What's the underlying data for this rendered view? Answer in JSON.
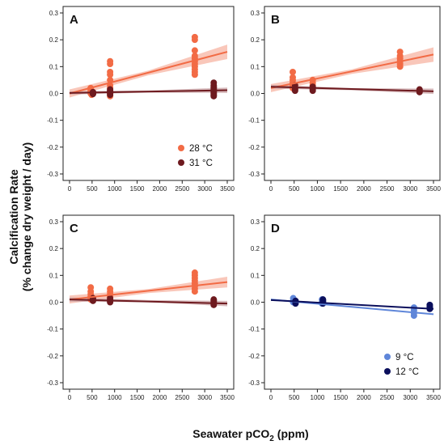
{
  "figure": {
    "ylabel_line1": "Calcification Rate",
    "ylabel_line2": "(% change dry weight / day)",
    "xlabel_main": "Seawater pCO",
    "xlabel_sub": "2",
    "xlabel_unit": "(ppm)"
  },
  "colors": {
    "orange": "#f26b45",
    "orange_band": "#f7b4a3",
    "darkred": "#6e1a1f",
    "darkred_band": "#c9a3a6",
    "lightblue": "#5f86d9",
    "navy": "#0b0f5c"
  },
  "chart_data": [
    {
      "type": "scatter",
      "panel": "A",
      "xlim": [
        0,
        3500
      ],
      "ylim": [
        -0.3,
        0.3
      ],
      "x_ticks": [
        0,
        500,
        1000,
        1500,
        2000,
        2500,
        3000,
        3500
      ],
      "y_ticks": [
        -0.3,
        -0.2,
        -0.1,
        0.0,
        0.1,
        0.2,
        0.3
      ],
      "x_tick_labels": [
        "0",
        "500",
        "1000",
        "1500",
        "2000",
        "2500",
        "3000",
        "3500"
      ],
      "y_tick_labels": [
        "-0.3",
        "-0.2",
        "-0.1",
        "0.0",
        "0.1",
        "0.2",
        "0.3"
      ],
      "legend": {
        "position": "bottom-right",
        "entries": [
          "28 °C",
          "31 °C"
        ]
      },
      "series": [
        {
          "name": "28 °C",
          "color": "orange",
          "band_color": "orange_band",
          "points": [
            [
              470,
              0.02
            ],
            [
              470,
              0.015
            ],
            [
              470,
              0.01
            ],
            [
              470,
              0.005
            ],
            [
              470,
              0.0
            ],
            [
              490,
              -0.005
            ],
            [
              480,
              0.01
            ],
            [
              900,
              0.12
            ],
            [
              900,
              0.11
            ],
            [
              900,
              0.08
            ],
            [
              900,
              0.07
            ],
            [
              900,
              0.05
            ],
            [
              900,
              0.03
            ],
            [
              900,
              0.02
            ],
            [
              900,
              0.0
            ],
            [
              900,
              -0.01
            ],
            [
              2780,
              0.21
            ],
            [
              2780,
              0.2
            ],
            [
              2780,
              0.16
            ],
            [
              2780,
              0.14
            ],
            [
              2780,
              0.13
            ],
            [
              2780,
              0.12
            ],
            [
              2780,
              0.11
            ],
            [
              2780,
              0.1
            ],
            [
              2780,
              0.09
            ],
            [
              2780,
              0.08
            ],
            [
              2780,
              0.07
            ]
          ],
          "fit": {
            "x": [
              0,
              3500
            ],
            "y": [
              0.0,
              0.155
            ]
          },
          "band": {
            "x": [
              0,
              1750,
              3500
            ],
            "lower": [
              -0.015,
              0.068,
              0.128
            ],
            "upper": [
              0.015,
              0.085,
              0.182
            ]
          }
        },
        {
          "name": "31 °C",
          "color": "darkred",
          "band_color": "darkred_band",
          "points": [
            [
              520,
              0.005
            ],
            [
              520,
              0.0
            ],
            [
              520,
              -0.002
            ],
            [
              520,
              0.003
            ],
            [
              900,
              0.015
            ],
            [
              900,
              0.01
            ],
            [
              900,
              0.005
            ],
            [
              900,
              0.0
            ],
            [
              900,
              -0.005
            ],
            [
              3200,
              0.04
            ],
            [
              3200,
              0.03
            ],
            [
              3200,
              0.025
            ],
            [
              3200,
              0.02
            ],
            [
              3200,
              0.015
            ],
            [
              3200,
              0.01
            ],
            [
              3200,
              0.005
            ],
            [
              3200,
              0.0
            ],
            [
              3200,
              -0.005
            ],
            [
              3200,
              -0.01
            ]
          ],
          "fit": {
            "x": [
              0,
              3500
            ],
            "y": [
              0.002,
              0.012
            ]
          },
          "band": {
            "x": [
              0,
              1750,
              3500
            ],
            "lower": [
              -0.004,
              0.003,
              0.002
            ],
            "upper": [
              0.008,
              0.011,
              0.022
            ]
          }
        }
      ]
    },
    {
      "type": "scatter",
      "panel": "B",
      "xlim": [
        0,
        3500
      ],
      "ylim": [
        -0.3,
        0.3
      ],
      "x_ticks": [
        0,
        500,
        1000,
        1500,
        2000,
        2500,
        3000,
        3500
      ],
      "y_ticks": [
        -0.3,
        -0.2,
        -0.1,
        0.0,
        0.1,
        0.2,
        0.3
      ],
      "x_tick_labels": [
        "0",
        "500",
        "1000",
        "1500",
        "2000",
        "2500",
        "3000",
        "3500"
      ],
      "y_tick_labels": [
        "-0.3",
        "-0.2",
        "-0.1",
        "0.0",
        "0.1",
        "0.2",
        "0.3"
      ],
      "series": [
        {
          "name": "28 °C",
          "color": "orange",
          "band_color": "orange_band",
          "points": [
            [
              470,
              0.08
            ],
            [
              470,
              0.06
            ],
            [
              470,
              0.05
            ],
            [
              470,
              0.04
            ],
            [
              470,
              0.03
            ],
            [
              470,
              0.02
            ],
            [
              900,
              0.05
            ],
            [
              900,
              0.04
            ],
            [
              900,
              0.03
            ],
            [
              900,
              0.02
            ],
            [
              2780,
              0.155
            ],
            [
              2780,
              0.14
            ],
            [
              2780,
              0.13
            ],
            [
              2780,
              0.12
            ],
            [
              2780,
              0.11
            ],
            [
              2780,
              0.1
            ]
          ],
          "fit": {
            "x": [
              0,
              3500
            ],
            "y": [
              0.02,
              0.145
            ]
          },
          "band": {
            "x": [
              0,
              1750,
              3500
            ],
            "lower": [
              0.005,
              0.073,
              0.118
            ],
            "upper": [
              0.035,
              0.09,
              0.172
            ]
          }
        },
        {
          "name": "31 °C",
          "color": "darkred",
          "band_color": "darkred_band",
          "points": [
            [
              520,
              0.03
            ],
            [
              520,
              0.02
            ],
            [
              520,
              0.015
            ],
            [
              520,
              0.01
            ],
            [
              900,
              0.025
            ],
            [
              900,
              0.02
            ],
            [
              900,
              0.015
            ],
            [
              900,
              0.01
            ],
            [
              3200,
              0.015
            ],
            [
              3200,
              0.01
            ],
            [
              3200,
              0.005
            ]
          ],
          "fit": {
            "x": [
              0,
              3500
            ],
            "y": [
              0.025,
              0.008
            ]
          },
          "band": {
            "x": [
              0,
              1750,
              3500
            ],
            "lower": [
              0.018,
              0.012,
              -0.002
            ],
            "upper": [
              0.032,
              0.02,
              0.018
            ]
          }
        }
      ]
    },
    {
      "type": "scatter",
      "panel": "C",
      "xlim": [
        0,
        3500
      ],
      "ylim": [
        -0.3,
        0.3
      ],
      "x_ticks": [
        0,
        500,
        1000,
        1500,
        2000,
        2500,
        3000,
        3500
      ],
      "y_ticks": [
        -0.3,
        -0.2,
        -0.1,
        0.0,
        0.1,
        0.2,
        0.3
      ],
      "x_tick_labels": [
        "0",
        "500",
        "1000",
        "1500",
        "2000",
        "2500",
        "3000",
        "3500"
      ],
      "y_tick_labels": [
        "-0.3",
        "-0.2",
        "-0.1",
        "0.0",
        "0.1",
        "0.2",
        "0.3"
      ],
      "series": [
        {
          "name": "28 °C",
          "color": "orange",
          "band_color": "orange_band",
          "points": [
            [
              470,
              0.055
            ],
            [
              470,
              0.04
            ],
            [
              470,
              0.03
            ],
            [
              470,
              0.02
            ],
            [
              470,
              0.015
            ],
            [
              470,
              0.01
            ],
            [
              900,
              0.05
            ],
            [
              900,
              0.04
            ],
            [
              900,
              0.03
            ],
            [
              900,
              0.02
            ],
            [
              2780,
              0.11
            ],
            [
              2780,
              0.1
            ],
            [
              2780,
              0.09
            ],
            [
              2780,
              0.08
            ],
            [
              2780,
              0.07
            ],
            [
              2780,
              0.06
            ],
            [
              2780,
              0.05
            ],
            [
              2780,
              0.04
            ]
          ],
          "fit": {
            "x": [
              0,
              3500
            ],
            "y": [
              0.01,
              0.075
            ]
          },
          "band": {
            "x": [
              0,
              1750,
              3500
            ],
            "lower": [
              -0.005,
              0.034,
              0.055
            ],
            "upper": [
              0.025,
              0.049,
              0.095
            ]
          }
        },
        {
          "name": "31 °C",
          "color": "darkred",
          "band_color": "darkred_band",
          "points": [
            [
              520,
              0.015
            ],
            [
              520,
              0.01
            ],
            [
              520,
              0.005
            ],
            [
              900,
              0.015
            ],
            [
              900,
              0.01
            ],
            [
              900,
              0.005
            ],
            [
              900,
              0.0
            ],
            [
              3200,
              0.01
            ],
            [
              3200,
              0.005
            ],
            [
              3200,
              0.0
            ],
            [
              3200,
              -0.005
            ],
            [
              3200,
              -0.01
            ]
          ],
          "fit": {
            "x": [
              0,
              3500
            ],
            "y": [
              0.01,
              -0.005
            ]
          },
          "band": {
            "x": [
              0,
              1750,
              3500
            ],
            "lower": [
              0.002,
              -0.0,
              -0.015
            ],
            "upper": [
              0.018,
              0.008,
              0.005
            ]
          }
        }
      ]
    },
    {
      "type": "scatter",
      "panel": "D",
      "xlim": [
        0,
        3500
      ],
      "ylim": [
        -0.3,
        0.3
      ],
      "x_ticks": [
        0,
        500,
        1000,
        1500,
        2000,
        2500,
        3000,
        3500
      ],
      "y_ticks": [
        -0.3,
        -0.2,
        -0.1,
        0.0,
        0.1,
        0.2,
        0.3
      ],
      "x_tick_labels": [
        "0",
        "500",
        "1000",
        "1500",
        "2000",
        "2500",
        "3000",
        "3500"
      ],
      "y_tick_labels": [
        "-0.3",
        "-0.2",
        "-0.1",
        "0.0",
        "0.1",
        "0.2",
        "0.3"
      ],
      "legend": {
        "position": "bottom-right",
        "entries": [
          "9 °C",
          "12 °C"
        ]
      },
      "series": [
        {
          "name": "9 °C",
          "color": "lightblue",
          "band_color": "lightblue",
          "points": [
            [
              480,
              0.015
            ],
            [
              480,
              0.005
            ],
            [
              480,
              0.0
            ],
            [
              1100,
              0.01
            ],
            [
              1100,
              0.0
            ],
            [
              1100,
              -0.005
            ],
            [
              3080,
              -0.02
            ],
            [
              3080,
              -0.03
            ],
            [
              3080,
              -0.04
            ],
            [
              3080,
              -0.05
            ]
          ],
          "fit": {
            "x": [
              0,
              3500
            ],
            "y": [
              0.01,
              -0.045
            ]
          }
        },
        {
          "name": "12 °C",
          "color": "navy",
          "band_color": "navy",
          "points": [
            [
              530,
              0.005
            ],
            [
              530,
              0.0
            ],
            [
              530,
              -0.005
            ],
            [
              1120,
              0.01
            ],
            [
              1120,
              0.005
            ],
            [
              1120,
              0.0
            ],
            [
              1120,
              -0.005
            ],
            [
              3420,
              -0.01
            ],
            [
              3420,
              -0.015
            ],
            [
              3420,
              -0.02
            ],
            [
              3420,
              -0.025
            ]
          ],
          "fit": {
            "x": [
              0,
              3500
            ],
            "y": [
              0.008,
              -0.025
            ]
          }
        }
      ]
    }
  ]
}
